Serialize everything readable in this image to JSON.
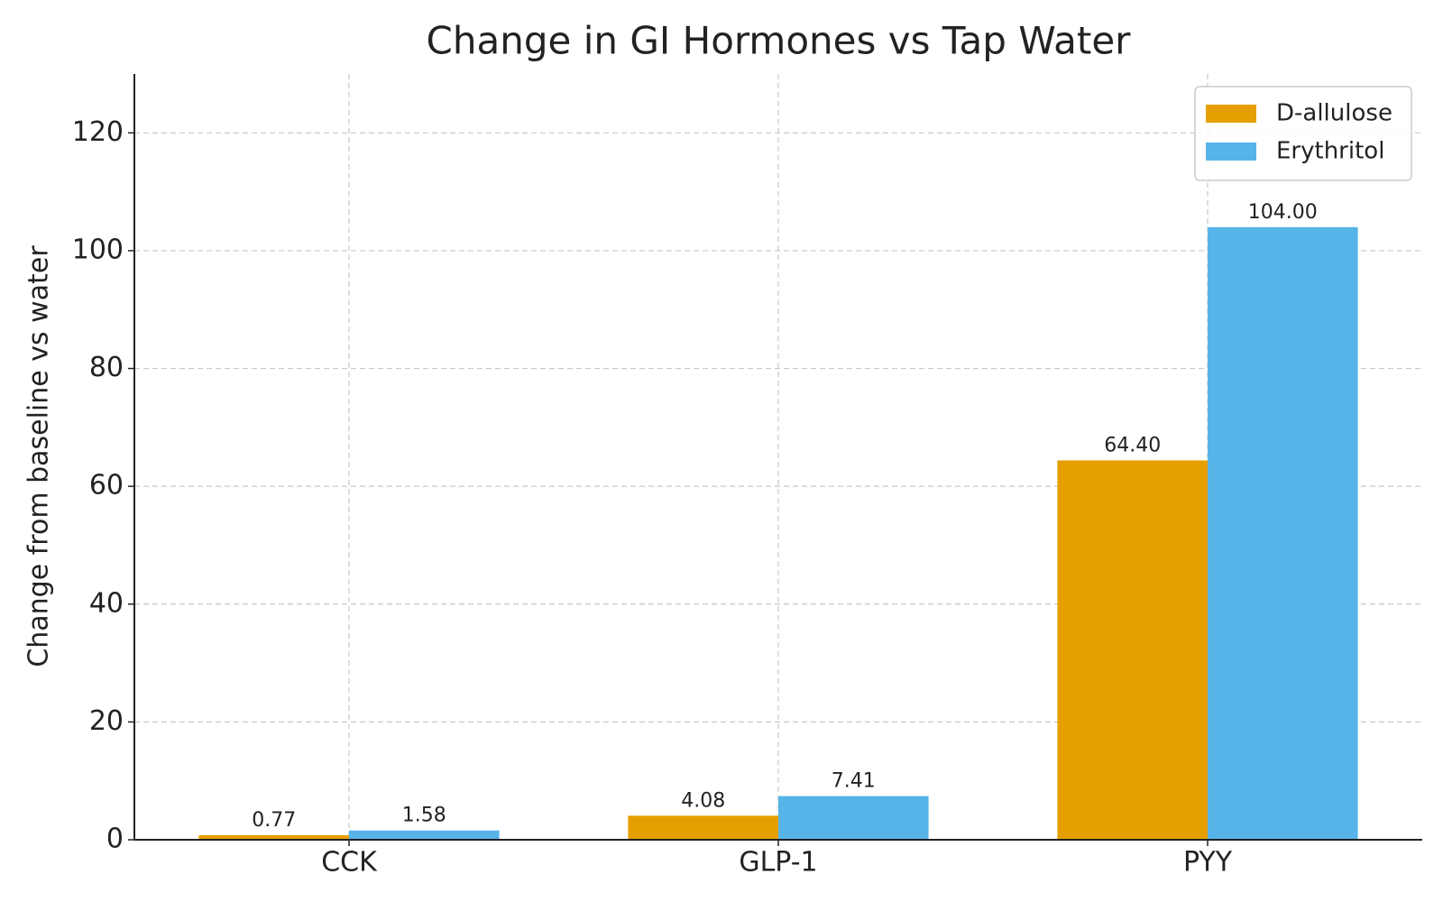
{
  "chart_data": {
    "type": "bar",
    "title": "Change in GI Hormones vs Tap Water",
    "y_label": "Change from baseline vs water",
    "categories": [
      "CCK",
      "GLP-1",
      "PYY"
    ],
    "series": [
      {
        "name": "D-allulose",
        "color": "#e69f00",
        "values": [
          0.77,
          4.08,
          64.4
        ],
        "value_labels": [
          "0.77",
          "4.08",
          "64.40"
        ]
      },
      {
        "name": "Erythritol",
        "color": "#56b4e9",
        "values": [
          1.58,
          7.41,
          104
        ],
        "value_labels": [
          "1.58",
          "7.41",
          "104.00"
        ]
      }
    ],
    "ylim": [
      0,
      130
    ],
    "yticks": [
      0,
      20,
      40,
      60,
      80,
      100,
      120
    ],
    "grid": true,
    "legend": "upper right"
  }
}
